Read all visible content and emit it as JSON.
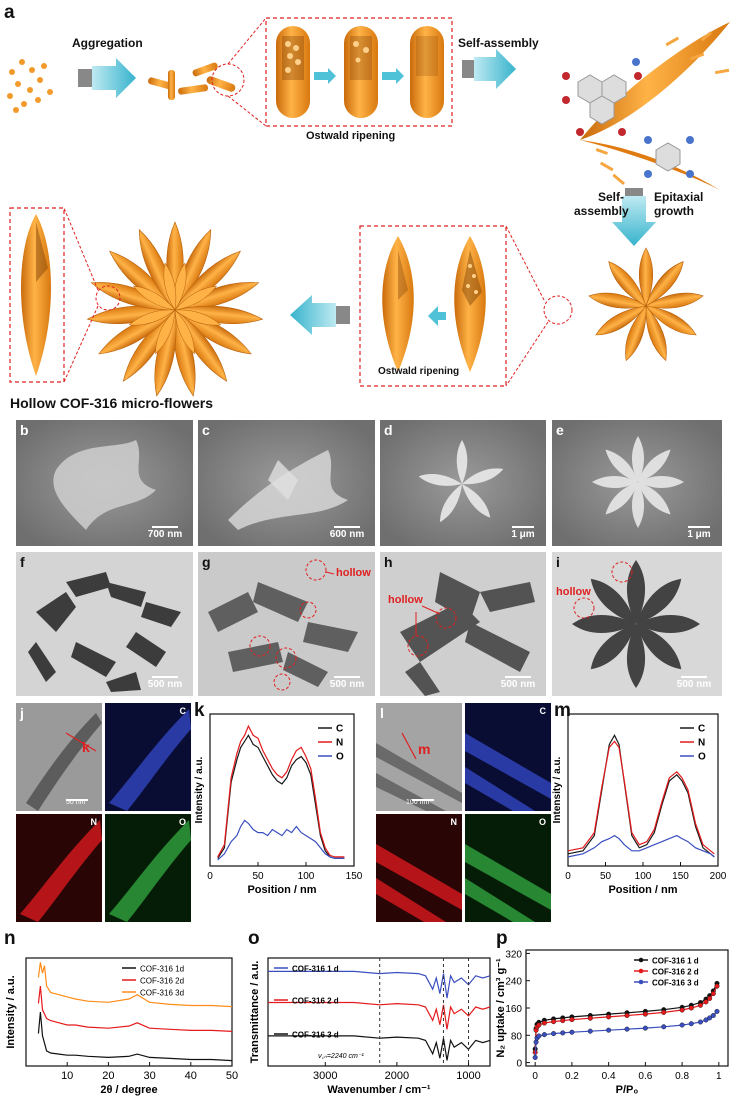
{
  "panel_labels": {
    "a": "a",
    "b": "b",
    "c": "c",
    "d": "d",
    "e": "e",
    "f": "f",
    "g": "g",
    "h": "h",
    "i": "i",
    "j": "j",
    "k": "k",
    "l": "l",
    "m": "m",
    "n": "n",
    "o": "o",
    "p": "p"
  },
  "schematic": {
    "aggregation": "Aggregation",
    "self_assembly_top": "Self-assembly",
    "ostwald_top": "Ostwald ripening",
    "self_assembly_right": "Self-\nassembly",
    "epitaxial_growth": "Epitaxial\ngrowth",
    "ostwald_bottom": "Ostwald ripening",
    "flower_caption": "Hollow COF-316 micro-flowers"
  },
  "micrographs": {
    "b_scale": "700 nm",
    "c_scale": "600 nm",
    "d_scale": "1 μm",
    "e_scale": "1 μm",
    "f_scale": "500 nm",
    "g_scale": "500 nm",
    "h_scale": "500 nm",
    "i_scale": "500 nm",
    "hollow": "hollow",
    "j_scale": "50 nm",
    "l_scale": "100 nm",
    "j_marker": "k",
    "l_marker": "m",
    "eds_C": "C",
    "eds_N": "N",
    "eds_O": "O"
  },
  "colors": {
    "C": "#1a1a1a",
    "N": "#e41a1c",
    "O": "#3a4fbf",
    "orange": "#ff8c1a",
    "cyan": "#4fc2d8"
  },
  "chart_data": [
    {
      "id": "k",
      "type": "line",
      "xlabel": "Position / nm",
      "ylabel": "Intensity / a.u.",
      "xlim": [
        0,
        150
      ],
      "xticks": [
        0,
        50,
        100,
        150
      ],
      "legend": [
        "C",
        "N",
        "O"
      ],
      "series": [
        {
          "name": "C",
          "x": [
            8,
            15,
            22,
            28,
            32,
            36,
            40,
            45,
            50,
            55,
            60,
            65,
            70,
            75,
            80,
            85,
            90,
            95,
            100,
            105,
            110,
            115,
            120,
            125,
            130,
            135,
            140
          ],
          "values": [
            0.05,
            0.12,
            0.55,
            0.7,
            0.78,
            0.82,
            0.86,
            0.8,
            0.78,
            0.72,
            0.66,
            0.6,
            0.56,
            0.54,
            0.58,
            0.66,
            0.7,
            0.72,
            0.68,
            0.6,
            0.4,
            0.2,
            0.1,
            0.06,
            0.05,
            0.05,
            0.05
          ]
        },
        {
          "name": "N",
          "x": [
            8,
            15,
            22,
            28,
            32,
            36,
            40,
            45,
            50,
            55,
            60,
            65,
            70,
            75,
            80,
            85,
            90,
            95,
            100,
            105,
            110,
            115,
            120,
            125,
            130,
            135,
            140
          ],
          "values": [
            0.06,
            0.14,
            0.58,
            0.74,
            0.82,
            0.86,
            0.92,
            0.86,
            0.84,
            0.76,
            0.7,
            0.64,
            0.6,
            0.58,
            0.62,
            0.7,
            0.76,
            0.78,
            0.72,
            0.64,
            0.44,
            0.22,
            0.12,
            0.07,
            0.06,
            0.06,
            0.06
          ]
        },
        {
          "name": "O",
          "x": [
            8,
            15,
            22,
            28,
            32,
            36,
            40,
            45,
            50,
            55,
            60,
            65,
            70,
            75,
            80,
            85,
            90,
            95,
            100,
            105,
            110,
            115,
            120,
            125,
            130,
            135,
            140
          ],
          "values": [
            0.04,
            0.08,
            0.16,
            0.2,
            0.26,
            0.3,
            0.28,
            0.24,
            0.22,
            0.22,
            0.2,
            0.24,
            0.22,
            0.2,
            0.24,
            0.22,
            0.26,
            0.22,
            0.2,
            0.18,
            0.16,
            0.12,
            0.08,
            0.06,
            0.05,
            0.05,
            0.05
          ]
        }
      ]
    },
    {
      "id": "m",
      "type": "line",
      "xlabel": "Position / nm",
      "ylabel": "Intensity / a.u.",
      "xlim": [
        0,
        200
      ],
      "xticks": [
        0,
        50,
        100,
        150,
        200
      ],
      "legend": [
        "C",
        "N",
        "O"
      ],
      "series": [
        {
          "name": "C",
          "x": [
            0,
            20,
            35,
            45,
            55,
            62,
            68,
            75,
            85,
            95,
            105,
            115,
            125,
            135,
            145,
            152,
            160,
            170,
            180,
            190,
            195
          ],
          "values": [
            0.08,
            0.1,
            0.2,
            0.5,
            0.8,
            0.86,
            0.8,
            0.55,
            0.2,
            0.12,
            0.14,
            0.22,
            0.4,
            0.56,
            0.6,
            0.56,
            0.48,
            0.26,
            0.12,
            0.08,
            0.06
          ]
        },
        {
          "name": "N",
          "x": [
            0,
            20,
            35,
            45,
            55,
            62,
            68,
            75,
            85,
            95,
            105,
            115,
            125,
            135,
            145,
            152,
            160,
            170,
            180,
            190,
            195
          ],
          "values": [
            0.1,
            0.12,
            0.22,
            0.52,
            0.78,
            0.82,
            0.78,
            0.56,
            0.22,
            0.14,
            0.16,
            0.24,
            0.42,
            0.58,
            0.62,
            0.58,
            0.5,
            0.28,
            0.14,
            0.1,
            0.08
          ]
        },
        {
          "name": "O",
          "x": [
            0,
            20,
            35,
            45,
            55,
            62,
            68,
            75,
            85,
            95,
            105,
            115,
            125,
            135,
            145,
            152,
            160,
            170,
            180,
            190,
            195
          ],
          "values": [
            0.06,
            0.08,
            0.12,
            0.16,
            0.18,
            0.2,
            0.18,
            0.14,
            0.1,
            0.1,
            0.12,
            0.14,
            0.16,
            0.18,
            0.2,
            0.18,
            0.16,
            0.12,
            0.1,
            0.08,
            0.06
          ]
        }
      ]
    },
    {
      "id": "n",
      "type": "line",
      "xlabel": "2θ / degree",
      "ylabel": "Intensity / a.u.",
      "xlim": [
        0,
        50
      ],
      "xticks": [
        10,
        20,
        30,
        40,
        50
      ],
      "legend": [
        "COF-316 1d",
        "COF-316 2d",
        "COF-316 3d"
      ],
      "series": [
        {
          "name": "COF-316 1d",
          "x": [
            3,
            3.5,
            4,
            5,
            6,
            8,
            10,
            12,
            15,
            20,
            25,
            27,
            30,
            35,
            40,
            45,
            50
          ],
          "values": [
            0.3,
            0.5,
            0.28,
            0.14,
            0.12,
            0.11,
            0.1,
            0.1,
            0.09,
            0.08,
            0.09,
            0.11,
            0.08,
            0.07,
            0.06,
            0.06,
            0.05
          ]
        },
        {
          "name": "COF-316 2d",
          "x": [
            3,
            3.5,
            4,
            5,
            6,
            8,
            10,
            12,
            15,
            20,
            25,
            27,
            30,
            35,
            40,
            45,
            50
          ],
          "values": [
            0.58,
            0.74,
            0.52,
            0.44,
            0.42,
            0.4,
            0.38,
            0.38,
            0.36,
            0.35,
            0.37,
            0.4,
            0.35,
            0.34,
            0.33,
            0.33,
            0.32
          ]
        },
        {
          "name": "COF-316 3d",
          "x": [
            3,
            3.5,
            4,
            4.5,
            5,
            6,
            8,
            10,
            12,
            15,
            20,
            25,
            27,
            30,
            35,
            40,
            45,
            50
          ],
          "values": [
            0.82,
            0.96,
            0.86,
            0.93,
            0.74,
            0.68,
            0.66,
            0.64,
            0.62,
            0.6,
            0.59,
            0.62,
            0.66,
            0.59,
            0.57,
            0.56,
            0.56,
            0.55
          ]
        }
      ]
    },
    {
      "id": "o",
      "type": "line",
      "xlabel": "Wavenumber / cm⁻¹",
      "ylabel": "Transmittance / a.u.",
      "xlim": [
        3800,
        700
      ],
      "xticks": [
        3000,
        2000,
        1000
      ],
      "legend": [
        "COF-316 1 d",
        "COF-316 2 d",
        "COF-316 3 d"
      ],
      "annotation": "ν꜀ₙ=2240 cm⁻¹",
      "series": [
        {
          "name": "COF-316 1 d",
          "x": [
            3800,
            3400,
            3000,
            2600,
            2240,
            2000,
            1700,
            1600,
            1500,
            1450,
            1400,
            1350,
            1300,
            1250,
            1200,
            1100,
            1000,
            900,
            800,
            700
          ],
          "values": [
            0.8,
            0.8,
            0.8,
            0.8,
            0.78,
            0.79,
            0.78,
            0.76,
            0.64,
            0.74,
            0.6,
            0.78,
            0.56,
            0.76,
            0.7,
            0.74,
            0.68,
            0.76,
            0.74,
            0.76
          ]
        },
        {
          "name": "COF-316 2 d",
          "x": [
            3800,
            3400,
            3000,
            2600,
            2240,
            2000,
            1700,
            1600,
            1500,
            1450,
            1400,
            1350,
            1300,
            1250,
            1200,
            1100,
            1000,
            900,
            800,
            700
          ],
          "values": [
            0.52,
            0.52,
            0.52,
            0.52,
            0.5,
            0.51,
            0.5,
            0.48,
            0.36,
            0.46,
            0.32,
            0.5,
            0.28,
            0.48,
            0.42,
            0.46,
            0.4,
            0.48,
            0.46,
            0.48
          ]
        },
        {
          "name": "COF-316 3 d",
          "x": [
            3800,
            3400,
            3000,
            2600,
            2240,
            2000,
            1700,
            1600,
            1500,
            1450,
            1400,
            1350,
            1300,
            1250,
            1200,
            1100,
            1000,
            900,
            800,
            700
          ],
          "values": [
            0.22,
            0.22,
            0.22,
            0.22,
            0.2,
            0.21,
            0.2,
            0.18,
            0.06,
            0.16,
            0.02,
            0.2,
            0.0,
            0.18,
            0.12,
            0.16,
            0.1,
            0.18,
            0.16,
            0.18
          ]
        }
      ]
    },
    {
      "id": "p",
      "type": "scatter",
      "xlabel": "P/P₀",
      "ylabel": "N₂ uptake / cm³ g⁻¹",
      "xlim": [
        -0.05,
        1.05
      ],
      "ylim": [
        -10,
        330
      ],
      "xticks": [
        0.0,
        0.2,
        0.4,
        0.6,
        0.8,
        1.0
      ],
      "yticks": [
        0,
        80,
        160,
        240,
        320
      ],
      "legend": [
        "COF-316 1 d",
        "COF-316 2 d",
        "COF-316 3 d"
      ],
      "series": [
        {
          "name": "COF-316 1 d",
          "x": [
            0.0,
            0.005,
            0.01,
            0.02,
            0.05,
            0.1,
            0.15,
            0.2,
            0.3,
            0.4,
            0.5,
            0.6,
            0.7,
            0.8,
            0.85,
            0.9,
            0.93,
            0.95,
            0.97,
            0.99
          ],
          "values": [
            40,
            100,
            112,
            118,
            124,
            128,
            131,
            134,
            138,
            142,
            146,
            150,
            155,
            162,
            168,
            176,
            186,
            196,
            210,
            232
          ]
        },
        {
          "name": "COF-316 2 d",
          "x": [
            0.0,
            0.005,
            0.01,
            0.02,
            0.05,
            0.1,
            0.15,
            0.2,
            0.3,
            0.4,
            0.5,
            0.6,
            0.7,
            0.8,
            0.85,
            0.9,
            0.93,
            0.95,
            0.97,
            0.99
          ],
          "values": [
            30,
            95,
            105,
            110,
            116,
            120,
            123,
            126,
            130,
            134,
            138,
            142,
            147,
            154,
            160,
            168,
            178,
            188,
            202,
            224
          ]
        },
        {
          "name": "COF-316 3 d",
          "x": [
            0.0,
            0.005,
            0.01,
            0.02,
            0.05,
            0.1,
            0.15,
            0.2,
            0.3,
            0.4,
            0.5,
            0.6,
            0.7,
            0.8,
            0.85,
            0.9,
            0.93,
            0.95,
            0.97,
            0.99
          ],
          "values": [
            15,
            60,
            72,
            78,
            82,
            85,
            87,
            89,
            92,
            95,
            98,
            101,
            105,
            110,
            114,
            119,
            125,
            131,
            138,
            150
          ]
        }
      ]
    }
  ]
}
